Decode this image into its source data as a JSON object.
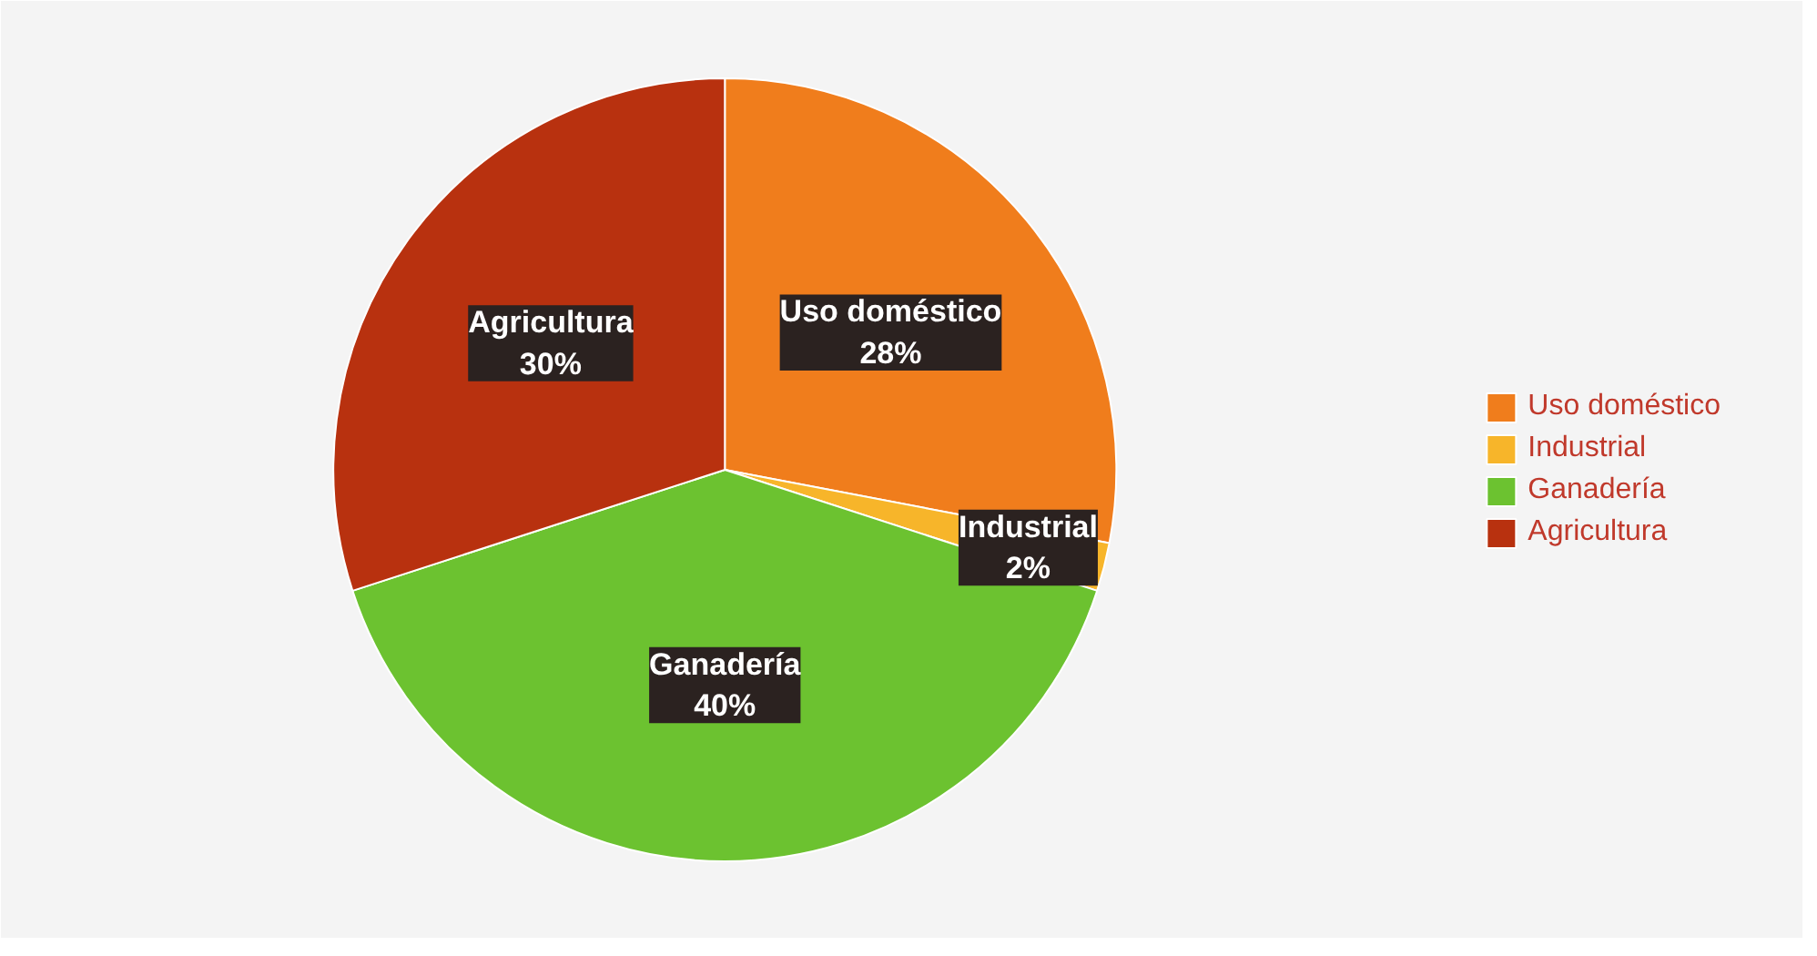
{
  "chart_data": {
    "type": "pie",
    "categories": [
      "Uso doméstico",
      "Industrial",
      "Ganadería",
      "Agricultura"
    ],
    "values": [
      28,
      2,
      40,
      30
    ],
    "value_labels": [
      "28%",
      "2%",
      "40%",
      "30%"
    ],
    "colors": [
      "#f07d1c",
      "#f7b52a",
      "#6cc230",
      "#b8310f"
    ],
    "data_labels": true,
    "legend": "right"
  }
}
